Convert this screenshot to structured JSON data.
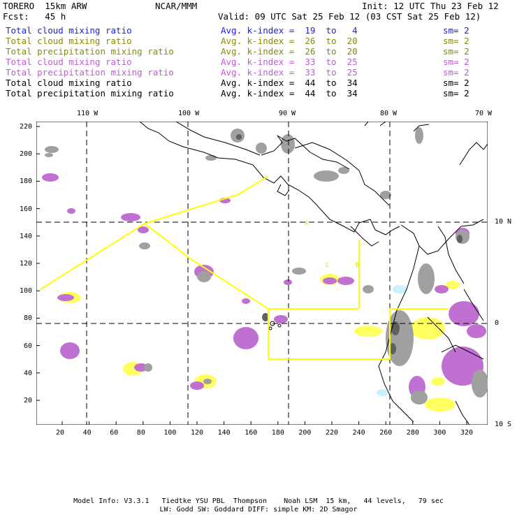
{
  "header": {
    "model": "TORERO  15km ARW",
    "center": "NCAR/MMM",
    "init": "Init: 12 UTC Thu 23 Feb 12",
    "fcst": "Fcst:   45 h",
    "valid": "Valid: 09 UTC Sat 25 Feb 12 (03 CST Sat 25 Feb 12)"
  },
  "fields": [
    {
      "name": "Total cloud mixing ratio",
      "kindex": "Avg. k-index =  19  to   4",
      "sm": "sm= 2",
      "color": "#1a1aff"
    },
    {
      "name": "Total cloud mixing ratio",
      "kindex": "Avg. k-index =  26  to  20",
      "sm": "sm= 2",
      "color": "#8a8a00"
    },
    {
      "name": "Total precipitation mixing ratio",
      "kindex": "Avg. k-index =  26  to  20",
      "sm": "sm= 2",
      "color": "#8a8a00"
    },
    {
      "name": "Total cloud mixing ratio",
      "kindex": "Avg. k-index =  33  to  25",
      "sm": "sm= 2",
      "color": "#c05ad8"
    },
    {
      "name": "Total precipitation mixing ratio",
      "kindex": "Avg. k-index =  33  to  25",
      "sm": "sm= 2",
      "color": "#c05ad8"
    },
    {
      "name": "Total cloud mixing ratio",
      "kindex": "Avg. k-index =  44  to  34",
      "sm": "sm= 2",
      "color": "#000000"
    },
    {
      "name": "Total precipitation mixing ratio",
      "kindex": "Avg. k-index =  44  to  34",
      "sm": "sm= 2",
      "color": "#000000"
    }
  ],
  "axes": {
    "x_ticks": [
      "20",
      "40",
      "60",
      "80",
      "100",
      "120",
      "140",
      "160",
      "180",
      "200",
      "220",
      "240",
      "260",
      "280",
      "300",
      "320"
    ],
    "y_ticks": [
      "220",
      "200",
      "180",
      "160",
      "140",
      "120",
      "100",
      "80",
      "60",
      "40",
      "20"
    ],
    "lon_labels": [
      "110 W",
      "100 W",
      "90 W",
      "80 W",
      "70 W"
    ],
    "lat_labels": [
      "10 N",
      "0",
      "10 S"
    ]
  },
  "map_labels": {
    "a": "A",
    "b": "B",
    "c": "C"
  },
  "colors": {
    "gray_cloud": "#a0a0a0",
    "dark_cloud": "#606060",
    "violet_fill": "#c070d0",
    "yellow_fill": "#ffff60",
    "cyan_fill": "#c8f0ff",
    "track_line": "#ffff00",
    "coast": "#000000"
  },
  "footer": {
    "line1": "Model Info: V3.3.1   Tiedtke YSU PBL  Thompson    Noah LSM  15 km,   44 levels,   79 sec",
    "line2": "LW: Godd SW: Goddard DIFF: simple KM: 2D Smagor"
  }
}
